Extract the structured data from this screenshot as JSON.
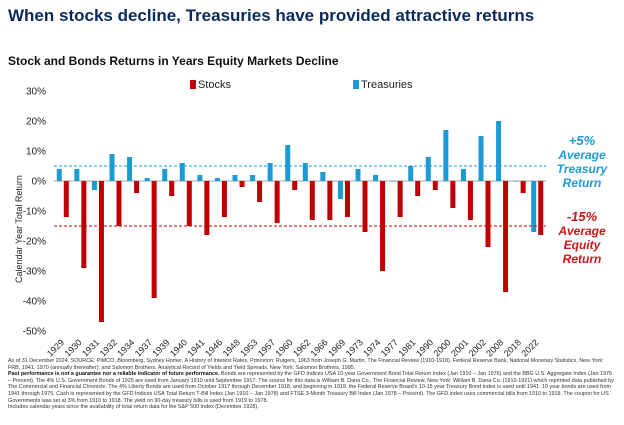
{
  "title": "When stocks decline, Treasuries have provided attractive returns",
  "colors": {
    "stocks": "#c00000",
    "treasuries": "#1b9ad6",
    "title": "#0b2a5b"
  },
  "annotations": {
    "treasury": {
      "value": "+5%",
      "line1": "Average",
      "line2": "Treasury",
      "line3": "Return"
    },
    "equity": {
      "value": "-15%",
      "line1": "Average",
      "line2": "Equity",
      "line3": "Return"
    }
  },
  "footnotes": {
    "source": "As of 31 December 2024. SOURCE: PIMCO, Bloomberg, Sydney Homer, A History of Interest Rates, Princeton: Rutgers, 1963 from Joseph G. Martin, The Financial Review (1910-1918), Federal Reserve Bank, National Monetary Statistics, New York: FRB, 1941, 1970 (annually thereafter); and Salomon Brothers, Analytical Record of Yields and Yield Spreads, New York: Salomon Brothers, 1995.",
    "disclaimer_bold": "Past performance is not a guarantee nor a reliable indicator of future performance.",
    "disclaimer": "Bonds are represented by the GFD Indices USA 10-year Government Bond Total Return Index (Jan 1910 – Jan 1976) and the BBG U.S. Aggregate Index (Jan 1976 – Present). The 4% U.S. Government Bonds of 1925 are used from January 1910 until September 1917. The source for this data is William B. Dana Co., The Financial Review, New York: William B. Dana Co. (1910-1921) which reprinted data published by The Commercial and Financial Chronicle. The 4% Liberty Bonds are used from October 1917 through December 1918, and beginning in 1919, the Federal Reserve Board's 10-15 year Treasury Bond index is used until 1941. 10 year bonds are used from 1941 through 1975. Cash is represented by the GFD Indices USA Total Return T-Bill Index (Jan 1910 – Jan 1978) and FTSE 3-Month Treasury Bill Index (Jan 1978 – Present). The GFD index uses commercial bills from 1910 to 1918. The coupon for US Governments was set at 3% from 1910 to 1918. The yield on 90-day treasury bills is used from 1919 to 1978.",
    "years_note": "Includes calendar years since the availability of total return data for the S&P 500 Index (December 1928)."
  },
  "chart_data": {
    "type": "bar",
    "title": "Stock and Bonds Returns in Years Equity Markets Decline",
    "xlabel": "",
    "ylabel": "Calendar Year Total Return",
    "ylim": [
      -50,
      30
    ],
    "yticks": [
      30,
      20,
      10,
      0,
      -10,
      -20,
      -30,
      -40,
      -50
    ],
    "ytick_labels": [
      "30%",
      "20%",
      "10%",
      "0%",
      "-10%",
      "-20%",
      "-30%",
      "-40%",
      "-50%"
    ],
    "categories": [
      "1929",
      "1930",
      "1931",
      "1932",
      "1934",
      "1937",
      "1939",
      "1940",
      "1941",
      "1946",
      "1948",
      "1953",
      "1957",
      "1960",
      "1962",
      "1966",
      "1969",
      "1973",
      "1974",
      "1977",
      "1981",
      "1990",
      "2000",
      "2001",
      "2002",
      "2008",
      "2018",
      "2022"
    ],
    "series": [
      {
        "name": "Stocks",
        "values": [
          -12,
          -29,
          -47,
          -15,
          -4,
          -39,
          -5,
          -15,
          -18,
          -12,
          -2,
          -7,
          -14,
          -3,
          -13,
          -13,
          -12,
          -17,
          -30,
          -12,
          -5,
          -3,
          -9,
          -13,
          -22,
          -37,
          -4,
          -18
        ]
      },
      {
        "name": "Treasuries",
        "values": [
          4,
          4,
          -3,
          9,
          8,
          1,
          4,
          6,
          2,
          1,
          2,
          2,
          6,
          12,
          6,
          3,
          -6,
          4,
          2,
          0,
          5,
          8,
          17,
          4,
          15,
          20,
          0,
          -17
        ]
      }
    ],
    "reference_lines": [
      {
        "name": "Average Treasury Return",
        "value": 5
      },
      {
        "name": "Average Equity Return",
        "value": -15
      }
    ],
    "legend": "top"
  }
}
